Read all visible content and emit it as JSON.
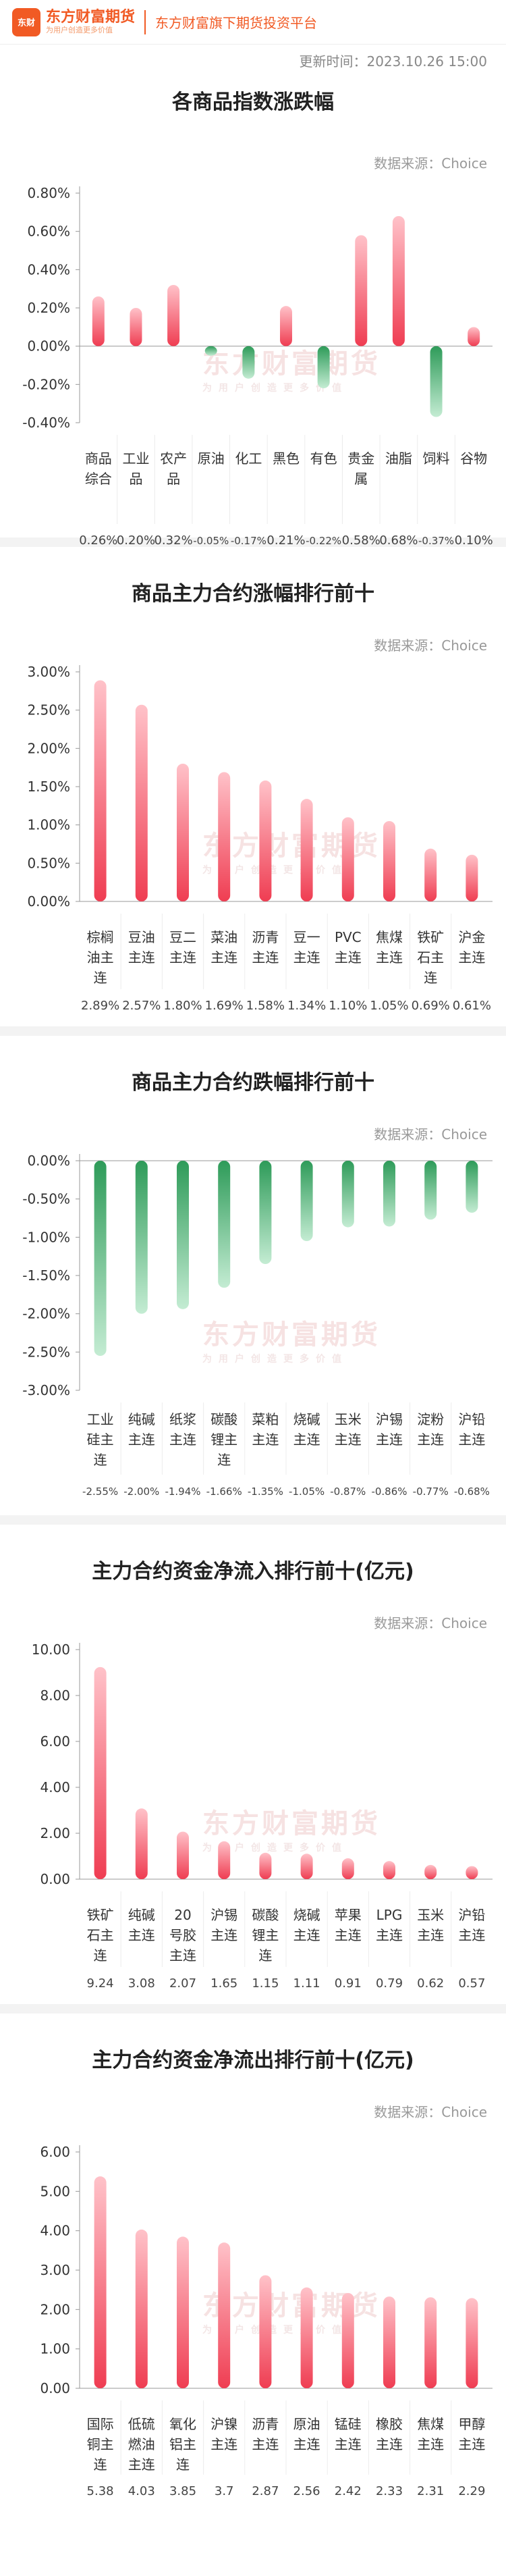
{
  "header": {
    "logo_badge": "东财",
    "logo_name": "东方财富期货",
    "logo_slogan": "为用户创造更多价值",
    "platform": "东方财富旗下期货投资平台"
  },
  "update_time": "更新时间：2023.10.26 15:00",
  "watermark": {
    "main": "东方财富期货",
    "sub": "为用户创造更多价值"
  },
  "source_label": "数据来源：Choice",
  "colors": {
    "red_top": "#ffc2c9",
    "red_bottom": "#ef3d52",
    "green_top": "#2e9b59",
    "green_bottom": "#c4ecd3",
    "axis": "#999999",
    "grid": "#e6e6e6"
  },
  "chart_data": [
    {
      "id": "c1",
      "type": "bar",
      "title": "各商品指数涨跌幅",
      "categories": [
        "商品综合",
        "工业品",
        "农产品",
        "原油",
        "化工",
        "黑色",
        "有色",
        "贵金属",
        "油脂",
        "饲料",
        "谷物"
      ],
      "values": [
        0.26,
        0.2,
        0.32,
        -0.05,
        -0.17,
        0.21,
        -0.22,
        0.58,
        0.68,
        -0.37,
        0.1
      ],
      "value_labels": [
        "0.26%",
        "0.20%",
        "0.32%",
        "-0.05%",
        "-0.17%",
        "0.21%",
        "-0.22%",
        "0.58%",
        "0.68%",
        "-0.37%",
        "0.10%"
      ],
      "ylim": [
        -0.4,
        0.8
      ],
      "yticks": [
        0.8,
        0.6,
        0.4,
        0.2,
        0.0,
        -0.2,
        -0.4
      ],
      "ytick_labels": [
        "0.80%",
        "0.60%",
        "0.40%",
        "0.20%",
        "0.00%",
        "-0.20%",
        "-0.40%"
      ],
      "grid": false
    },
    {
      "id": "c2",
      "type": "bar",
      "title": "商品主力合约涨幅排行前十",
      "categories": [
        "棕榈油主连",
        "豆油主连",
        "豆二主连",
        "菜油主连",
        "沥青主连",
        "豆一主连",
        "PVC主连",
        "焦煤主连",
        "铁矿石主连",
        "沪金主连"
      ],
      "values": [
        2.89,
        2.57,
        1.8,
        1.69,
        1.58,
        1.34,
        1.1,
        1.05,
        0.69,
        0.61
      ],
      "value_labels": [
        "2.89%",
        "2.57%",
        "1.80%",
        "1.69%",
        "1.58%",
        "1.34%",
        "1.10%",
        "1.05%",
        "0.69%",
        "0.61%"
      ],
      "ylim": [
        0,
        3.0
      ],
      "yticks": [
        3.0,
        2.5,
        2.0,
        1.5,
        1.0,
        0.5,
        0.0
      ],
      "ytick_labels": [
        "3.00%",
        "2.50%",
        "2.00%",
        "1.50%",
        "1.00%",
        "0.50%",
        "0.00%"
      ],
      "grid": false
    },
    {
      "id": "c3",
      "type": "bar",
      "title": "商品主力合约跌幅排行前十",
      "categories": [
        "工业硅主连",
        "纯碱主连",
        "纸浆主连",
        "碳酸锂主连",
        "菜粕主连",
        "烧碱主连",
        "玉米主连",
        "沪锡主连",
        "淀粉主连",
        "沪铅主连"
      ],
      "values": [
        -2.55,
        -2.0,
        -1.94,
        -1.66,
        -1.35,
        -1.05,
        -0.87,
        -0.86,
        -0.77,
        -0.68
      ],
      "value_labels": [
        "-2.55%",
        "-2.00%",
        "-1.94%",
        "-1.66%",
        "-1.35%",
        "-1.05%",
        "-0.87%",
        "-0.86%",
        "-0.77%",
        "-0.68%"
      ],
      "ylim": [
        -3.0,
        0
      ],
      "yticks": [
        0.0,
        -0.5,
        -1.0,
        -1.5,
        -2.0,
        -2.5,
        -3.0
      ],
      "ytick_labels": [
        "0.00%",
        "-0.50%",
        "-1.00%",
        "-1.50%",
        "-2.00%",
        "-2.50%",
        "-3.00%"
      ],
      "grid": false
    },
    {
      "id": "c4",
      "type": "bar",
      "title": "主力合约资金净流入排行前十(亿元)",
      "categories": [
        "铁矿石主连",
        "纯碱主连",
        "20号胶主连",
        "沪锡主连",
        "碳酸锂主连",
        "烧碱主连",
        "苹果主连",
        "LPG主连",
        "玉米主连",
        "沪铅主连"
      ],
      "values": [
        9.24,
        3.08,
        2.07,
        1.65,
        1.15,
        1.11,
        0.91,
        0.79,
        0.62,
        0.57
      ],
      "value_labels": [
        "9.24",
        "3.08",
        "2.07",
        "1.65",
        "1.15",
        "1.11",
        "0.91",
        "0.79",
        "0.62",
        "0.57"
      ],
      "ylim": [
        0,
        10
      ],
      "yticks": [
        10,
        8,
        6,
        4,
        2,
        0
      ],
      "ytick_labels": [
        "10.00",
        "8.00",
        "6.00",
        "4.00",
        "2.00",
        "0.00"
      ],
      "grid": false
    },
    {
      "id": "c5",
      "type": "bar",
      "title": "主力合约资金净流出排行前十(亿元)",
      "categories": [
        "国际铜主连",
        "低硫燃油主连",
        "氧化铝主连",
        "沪镍主连",
        "沥青主连",
        "原油主连",
        "锰硅主连",
        "橡胶主连",
        "焦煤主连",
        "甲醇主连"
      ],
      "values": [
        5.38,
        4.03,
        3.85,
        3.7,
        2.87,
        2.56,
        2.42,
        2.33,
        2.31,
        2.29
      ],
      "value_labels": [
        "5.38",
        "4.03",
        "3.85",
        "3.7",
        "2.87",
        "2.56",
        "2.42",
        "2.33",
        "2.31",
        "2.29"
      ],
      "ylim": [
        0,
        6
      ],
      "yticks": [
        6,
        5,
        4,
        3,
        2,
        1,
        0
      ],
      "ytick_labels": [
        "6.00",
        "5.00",
        "4.00",
        "3.00",
        "2.00",
        "1.00",
        "0.00"
      ],
      "grid": false
    }
  ]
}
